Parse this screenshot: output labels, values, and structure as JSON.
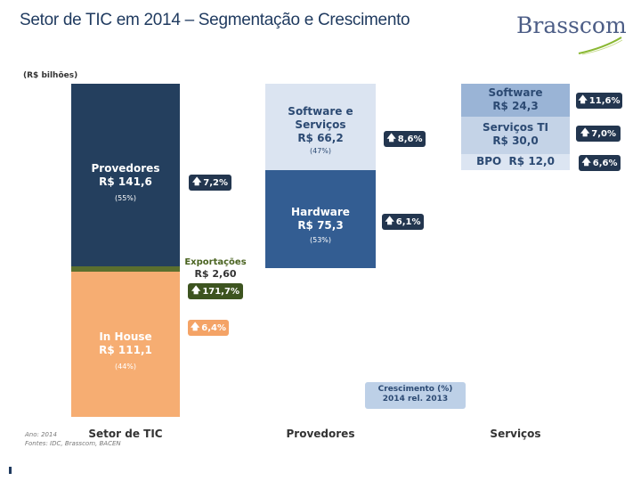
{
  "title": "Setor de TIC em 2014 – Segmentação e Crescimento",
  "logo_text": "Brasscom",
  "unit_label": "(R$ bilhões)",
  "colors": {
    "dark_navy": "#243f5e",
    "olive": "#5b6f2e",
    "orange": "#f6ad72",
    "light_blue": "#dbe4f1",
    "mid_blue": "#335d92",
    "software_blue": "#9ab4d6",
    "servicos_blue": "#c4d3e7",
    "bpo_blue": "#dce5f2",
    "badge_navy": "#23364f",
    "badge_green": "#3d5420",
    "badge_orange": "#f4a366",
    "legend_blue": "#bdd0e7"
  },
  "chart_data": {
    "type": "bar",
    "categories": [
      "Setor de TIC",
      "Provedores",
      "Serviços"
    ],
    "ylim": [
      0,
      255.3
    ],
    "columns": [
      {
        "category": "Setor de TIC",
        "segments": [
          {
            "name": "In House",
            "value_label": "R$ 111,1",
            "value": 111.1,
            "share": "(44%)",
            "growth": "6,4%"
          },
          {
            "name": "Exportações",
            "value_label": "R$ 2,60",
            "value": 2.6,
            "growth": "171,7%"
          },
          {
            "name": "Provedores",
            "value_label": "R$ 141,6",
            "value": 141.6,
            "share": "(55%)",
            "growth": "7,2%"
          }
        ]
      },
      {
        "category": "Provedores",
        "segments": [
          {
            "name": "Hardware",
            "value_label": "R$ 75,3",
            "value": 75.3,
            "share": "(53%)",
            "growth": "6,1%"
          },
          {
            "name": "Software e Serviços",
            "value_label": "R$ 66,2",
            "value": 66.2,
            "share": "(47%)",
            "growth": "8,6%"
          }
        ]
      },
      {
        "category": "Serviços",
        "segments": [
          {
            "name": "BPO",
            "value_label": "R$ 12,0",
            "value": 12.0,
            "growth": "6,6%"
          },
          {
            "name": "Serviços TI",
            "value_label": "R$ 30,0",
            "value": 30.0,
            "growth": "7,0%"
          },
          {
            "name": "Software",
            "value_label": "R$ 24,3",
            "value": 24.3,
            "growth": "11,6%"
          }
        ]
      }
    ],
    "legend_box": [
      "Crescimento (%)",
      "2014 rel. 2013"
    ]
  },
  "labels": {
    "exportacoes_name": "Exportações",
    "exportacoes_value": "R$ 2,60",
    "bpo_line": "BPO  R$ 12,0"
  },
  "footer": {
    "year": "Ano: 2014",
    "sources": "Fontes: IDC, Brasscom, BACEN"
  }
}
